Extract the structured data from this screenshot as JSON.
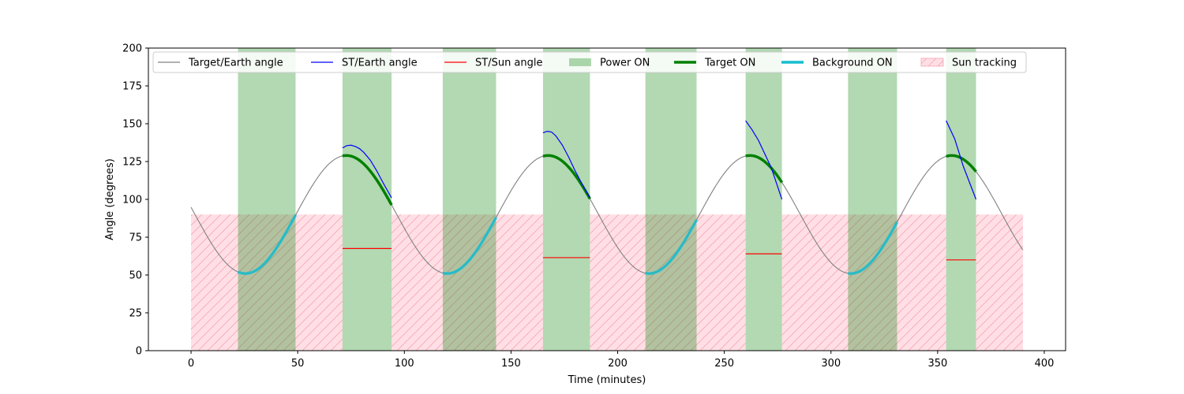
{
  "chart_data": {
    "type": "line",
    "title": "",
    "xlabel": "Time (minutes)",
    "ylabel": "Angle (degrees)",
    "xlim": [
      -20,
      410
    ],
    "ylim": [
      0,
      200
    ],
    "xticks": [
      0,
      50,
      100,
      150,
      200,
      250,
      300,
      350,
      400
    ],
    "yticks": [
      0,
      25,
      50,
      75,
      100,
      125,
      150,
      175,
      200
    ],
    "grid": false,
    "legend_position": "top-center",
    "legend": [
      {
        "label": "Target/Earth angle",
        "kind": "line",
        "color": "#808080"
      },
      {
        "label": "ST/Earth angle",
        "kind": "line",
        "color": "#0000ff"
      },
      {
        "label": "ST/Sun angle",
        "kind": "line",
        "color": "#ff0000"
      },
      {
        "label": "Power ON",
        "kind": "patch",
        "color": "#b2d8b2"
      },
      {
        "label": "Target ON",
        "kind": "thick-line",
        "color": "#008000"
      },
      {
        "label": "Background ON",
        "kind": "thick-line",
        "color": "#17becf"
      },
      {
        "label": "Sun tracking",
        "kind": "hatch-patch",
        "color": "#ffc0cb"
      }
    ],
    "target_earth_angle": {
      "t_start": 0,
      "t_end": 390,
      "mean": 90,
      "amplitude": 39,
      "period": 94.6,
      "min_time": 25.5
    },
    "power_on": [
      [
        22,
        49
      ],
      [
        71,
        94
      ],
      [
        118,
        143
      ],
      [
        165,
        187
      ],
      [
        213,
        237
      ],
      [
        260,
        277
      ],
      [
        308,
        331
      ],
      [
        354,
        368
      ]
    ],
    "target_on": [
      [
        71,
        94
      ],
      [
        165,
        187
      ],
      [
        260,
        277
      ],
      [
        354,
        368
      ]
    ],
    "background_on": [
      [
        22,
        49
      ],
      [
        118,
        143
      ],
      [
        213,
        237
      ],
      [
        308,
        331
      ]
    ],
    "sun_tracking": [
      [
        0,
        71
      ],
      [
        94,
        165
      ],
      [
        187,
        260
      ],
      [
        277,
        354
      ],
      [
        368,
        390
      ]
    ],
    "sun_tracking_level": 90,
    "st_earth_angle": [
      {
        "x": [
          71,
          73,
          75,
          77,
          79,
          81,
          84,
          87,
          90,
          94
        ],
        "y": [
          134,
          135.5,
          135.8,
          135,
          133.5,
          131,
          126,
          119,
          111,
          101
        ]
      },
      {
        "x": [
          165,
          167,
          169,
          171,
          174,
          177,
          180,
          183,
          187
        ],
        "y": [
          144,
          145,
          144.5,
          142,
          136,
          128,
          119,
          111,
          101
        ]
      },
      {
        "x": [
          260,
          263,
          266,
          269,
          272,
          277
        ],
        "y": [
          152,
          146,
          139,
          130,
          121,
          100
        ]
      },
      {
        "x": [
          354,
          356,
          358,
          360,
          362,
          365,
          368
        ],
        "y": [
          152,
          146,
          140,
          131,
          122,
          111,
          100
        ]
      }
    ],
    "st_sun_angle": [
      {
        "x": [
          71,
          94
        ],
        "y": [
          67.5,
          67.5
        ]
      },
      {
        "x": [
          165,
          187
        ],
        "y": [
          61.5,
          61.5
        ]
      },
      {
        "x": [
          260,
          277
        ],
        "y": [
          64,
          64
        ]
      },
      {
        "x": [
          354,
          368
        ],
        "y": [
          60,
          60
        ]
      }
    ]
  }
}
